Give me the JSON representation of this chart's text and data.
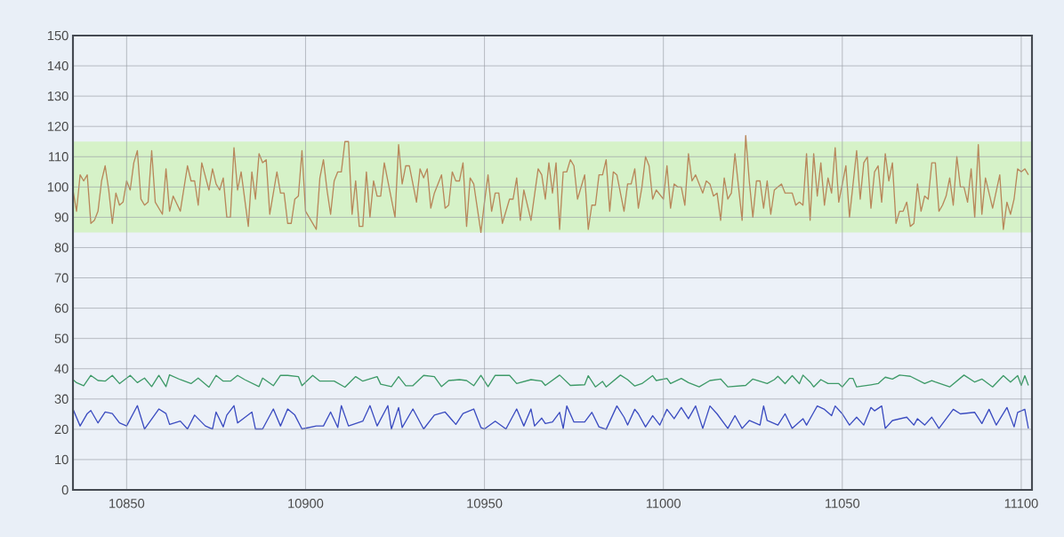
{
  "chart_data": {
    "type": "line",
    "xlim": [
      10835,
      11103
    ],
    "ylim": [
      0,
      150
    ],
    "xticks": [
      10850,
      10900,
      10950,
      11000,
      11050,
      11100
    ],
    "yticks": [
      0,
      10,
      20,
      30,
      40,
      50,
      60,
      70,
      80,
      90,
      100,
      110,
      120,
      130,
      140,
      150
    ],
    "grid": true,
    "marker": "none",
    "line_style": "solid",
    "bands": [
      {
        "axis": "y",
        "from": 85,
        "to": 115,
        "color": "#d6f2c8"
      }
    ],
    "series": [
      {
        "color": "#b8875a",
        "x": [
          10835,
          10836,
          10837,
          10838,
          10839,
          10840,
          10841,
          10842,
          10843,
          10844,
          10845,
          10846,
          10847,
          10848,
          10849,
          10850,
          10851,
          10852,
          10853,
          10854,
          10855,
          10856,
          10857,
          10858,
          10860,
          10861,
          10862,
          10863,
          10865,
          10867,
          10868,
          10869,
          10870,
          10871,
          10873,
          10874,
          10875,
          10876,
          10877,
          10878,
          10879,
          10880,
          10881,
          10882,
          10884,
          10885,
          10886,
          10887,
          10888,
          10889,
          10890,
          10892,
          10893,
          10894,
          10895,
          10896,
          10897,
          10898,
          10899,
          10900,
          10901,
          10903,
          10904,
          10905,
          10906,
          10907,
          10908,
          10909,
          10910,
          10911,
          10912,
          10913,
          10914,
          10915,
          10916,
          10917,
          10918,
          10919,
          10920,
          10921,
          10922,
          10923,
          10925,
          10926,
          10927,
          10928,
          10929,
          10931,
          10932,
          10933,
          10934,
          10935,
          10936,
          10938,
          10939,
          10940,
          10941,
          10942,
          10943,
          10944,
          10945,
          10946,
          10947,
          10949,
          10950,
          10951,
          10952,
          10953,
          10954,
          10955,
          10957,
          10958,
          10959,
          10960,
          10961,
          10963,
          10965,
          10966,
          10967,
          10968,
          10969,
          10970,
          10971,
          10972,
          10973,
          10974,
          10975,
          10976,
          10978,
          10979,
          10980,
          10981,
          10982,
          10983,
          10984,
          10985,
          10986,
          10987,
          10989,
          10990,
          10991,
          10992,
          10993,
          10994,
          10995,
          10996,
          10997,
          10998,
          11000,
          11001,
          11002,
          11003,
          11004,
          11005,
          11006,
          11007,
          11008,
          11009,
          11011,
          11012,
          11013,
          11014,
          11015,
          11016,
          11017,
          11018,
          11019,
          11020,
          11022,
          11023,
          11024,
          11025,
          11026,
          11027,
          11028,
          11029,
          11030,
          11031,
          11032,
          11033,
          11034,
          11036,
          11037,
          11038,
          11039,
          11040,
          11041,
          11042,
          11043,
          11044,
          11045,
          11046,
          11047,
          11048,
          11049,
          11051,
          11052,
          11054,
          11055,
          11056,
          11057,
          11058,
          11059,
          11060,
          11061,
          11062,
          11063,
          11064,
          11065,
          11066,
          11067,
          11068,
          11069,
          11070,
          11071,
          11072,
          11073,
          11074,
          11075,
          11076,
          11077,
          11078,
          11079,
          11080,
          11081,
          11082,
          11083,
          11084,
          11085,
          11086,
          11087,
          11088,
          11089,
          11090,
          11091,
          11092,
          11094,
          11095,
          11096,
          11097,
          11098,
          11099,
          11100,
          11101,
          11102
        ],
        "values": [
          99,
          92,
          104,
          102,
          104,
          88,
          89,
          92,
          102,
          107,
          99,
          88,
          98,
          94,
          95,
          102,
          99,
          108,
          112,
          96,
          94,
          95,
          112,
          95,
          91,
          106,
          92,
          97,
          92,
          107,
          102,
          102,
          94,
          108,
          99,
          106,
          101,
          99,
          103,
          90,
          90,
          113,
          99,
          105,
          87,
          105,
          96,
          111,
          108,
          109,
          91,
          105,
          98,
          98,
          88,
          88,
          96,
          97,
          112,
          92,
          90,
          86,
          103,
          109,
          99,
          91,
          102,
          105,
          105,
          115,
          115,
          91,
          102,
          87,
          87,
          105,
          90,
          102,
          97,
          97,
          108,
          102,
          90,
          114,
          101,
          107,
          107,
          95,
          106,
          103,
          106,
          93,
          98,
          104,
          93,
          94,
          105,
          102,
          102,
          108,
          87,
          103,
          101,
          85,
          95,
          104,
          92,
          98,
          98,
          88,
          96,
          96,
          103,
          89,
          99,
          89,
          106,
          104,
          96,
          108,
          98,
          108,
          86,
          105,
          105,
          109,
          107,
          96,
          104,
          86,
          94,
          94,
          104,
          104,
          109,
          92,
          105,
          104,
          92,
          101,
          101,
          106,
          93,
          100,
          110,
          107,
          96,
          99,
          96,
          107,
          93,
          101,
          100,
          100,
          94,
          111,
          102,
          104,
          98,
          102,
          101,
          97,
          98,
          89,
          103,
          96,
          98,
          111,
          89,
          117,
          102,
          90,
          102,
          102,
          93,
          102,
          91,
          99,
          100,
          101,
          98,
          98,
          94,
          95,
          94,
          111,
          89,
          111,
          97,
          108,
          94,
          103,
          98,
          113,
          95,
          107,
          90,
          112,
          96,
          108,
          110,
          93,
          105,
          107,
          95,
          111,
          102,
          108,
          88,
          92,
          92,
          95,
          87,
          88,
          101,
          92,
          97,
          96,
          108,
          108,
          92,
          94,
          97,
          103,
          94,
          110,
          100,
          100,
          95,
          106,
          90,
          114,
          91,
          103,
          98,
          93,
          104,
          86,
          95,
          91,
          96,
          106,
          105,
          106,
          104
        ]
      },
      {
        "color": "#3e9a68",
        "x": [
          10835,
          10836,
          10838,
          10840,
          10842,
          10844,
          10846,
          10848,
          10851,
          10853,
          10855,
          10857,
          10859,
          10861,
          10862,
          10865,
          10868,
          10870,
          10873,
          10875,
          10877,
          10879,
          10881,
          10883,
          10887,
          10888,
          10891,
          10893,
          10895,
          10898,
          10899,
          10902,
          10904,
          10908,
          10911,
          10914,
          10916,
          10920,
          10921,
          10924,
          10926,
          10928,
          10930,
          10933,
          10936,
          10938,
          10940,
          10943,
          10945,
          10947,
          10949,
          10951,
          10953,
          10957,
          10959,
          10963,
          10966,
          10967,
          10971,
          10974,
          10978,
          10979,
          10981,
          10983,
          10984,
          10988,
          10990,
          10992,
          10994,
          10997,
          10998,
          11001,
          11002,
          11005,
          11007,
          11010,
          11013,
          11016,
          11018,
          11023,
          11025,
          11029,
          11031,
          11032,
          11034,
          11036,
          11038,
          11039,
          11041,
          11042,
          11044,
          11046,
          11049,
          11050,
          11052,
          11053,
          11054,
          11058,
          11060,
          11062,
          11064,
          11066,
          11069,
          11073,
          11075,
          11076,
          11080,
          11084,
          11087,
          11089,
          11092,
          11095,
          11097,
          11099,
          11100,
          11101,
          11102
        ],
        "values": [
          36.4,
          35.4,
          34.4,
          37.8,
          36.1,
          35.9,
          37.8,
          35.1,
          37.8,
          35.4,
          36.9,
          34.1,
          37.8,
          34.1,
          38,
          36.4,
          35.1,
          36.9,
          33.9,
          37.8,
          35.9,
          35.9,
          37.8,
          36.4,
          34.1,
          36.9,
          34.4,
          37.8,
          37.8,
          37.4,
          34.4,
          37.8,
          35.9,
          35.9,
          33.9,
          37.4,
          35.9,
          37.4,
          34.9,
          34.1,
          37.4,
          34.4,
          34.4,
          37.8,
          37.4,
          34.1,
          36.1,
          36.4,
          36.1,
          34.4,
          37.8,
          34.1,
          37.8,
          37.8,
          35.1,
          36.4,
          35.9,
          34.5,
          37.9,
          34.5,
          34.7,
          37.7,
          34,
          35.8,
          34,
          37.9,
          36.4,
          34.3,
          35.1,
          37.7,
          36.1,
          36.8,
          35.1,
          36.8,
          35.4,
          34,
          36.1,
          36.6,
          34,
          34.5,
          36.6,
          35.1,
          36.4,
          37.5,
          35.1,
          37.7,
          35.1,
          37.9,
          35.6,
          34,
          36.4,
          35.1,
          35.1,
          34,
          36.8,
          36.8,
          34,
          34.7,
          35.1,
          37.2,
          36.6,
          37.9,
          37.5,
          35.1,
          36.1,
          35.6,
          34,
          37.9,
          35.6,
          36.6,
          34,
          37.7,
          35.6,
          37.7,
          34.5,
          37.7,
          34.5
        ]
      },
      {
        "color": "#3b4cc0",
        "x": [
          10835,
          10837,
          10839,
          10840,
          10842,
          10844,
          10846,
          10848,
          10850,
          10853,
          10855,
          10859,
          10861,
          10862,
          10865,
          10867,
          10869,
          10872,
          10874,
          10875,
          10877,
          10878,
          10880,
          10881,
          10885,
          10886,
          10888,
          10891,
          10893,
          10895,
          10897,
          10899,
          10903,
          10905,
          10907,
          10909,
          10910,
          10912,
          10916,
          10918,
          10920,
          10923,
          10924,
          10926,
          10927,
          10930,
          10933,
          10936,
          10939,
          10942,
          10944,
          10947,
          10949,
          10950,
          10953,
          10956,
          10959,
          10961,
          10963,
          10964,
          10966,
          10967,
          10969,
          10971,
          10972,
          10973,
          10975,
          10978,
          10980,
          10982,
          10984,
          10987,
          10989,
          10990,
          10992,
          10993,
          10995,
          10997,
          10999,
          11001,
          11003,
          11005,
          11007,
          11009,
          11011,
          11013,
          11015,
          11018,
          11020,
          11022,
          11024,
          11027,
          11028,
          11029,
          11032,
          11034,
          11036,
          11039,
          11040,
          11042,
          11043,
          11045,
          11047,
          11048,
          11050,
          11052,
          11054,
          11056,
          11058,
          11059,
          11061,
          11062,
          11064,
          11068,
          11070,
          11071,
          11073,
          11075,
          11077,
          11081,
          11083,
          11087,
          11089,
          11091,
          11093,
          11096,
          11098,
          11099,
          11101,
          11102
        ],
        "values": [
          26.7,
          21.1,
          25.2,
          26.2,
          22.1,
          25.7,
          25.2,
          22.1,
          21.1,
          27.8,
          20.1,
          26.7,
          25.2,
          21.6,
          22.7,
          20.1,
          24.7,
          21.1,
          20.1,
          25.7,
          20.8,
          24.7,
          27.8,
          22.1,
          25.7,
          20.1,
          20.1,
          26.7,
          21.1,
          26.7,
          24.7,
          20.1,
          21.1,
          21.1,
          25.7,
          20.6,
          27.8,
          21.1,
          22.7,
          27.8,
          21.1,
          27.8,
          20.1,
          27.2,
          20.6,
          26.7,
          20.1,
          24.7,
          25.7,
          21.6,
          25.2,
          26.7,
          20.6,
          20.1,
          22.7,
          20.1,
          26.7,
          21.1,
          26.7,
          21.1,
          23.7,
          21.9,
          22.4,
          25.6,
          20.3,
          27.7,
          22.4,
          22.4,
          25.6,
          20.8,
          20,
          27.7,
          24,
          21.4,
          26.6,
          25.1,
          20.8,
          24.5,
          21.4,
          26.6,
          23.5,
          27.2,
          23.5,
          27.7,
          20.3,
          27.7,
          25.1,
          20.3,
          24.5,
          20.3,
          22.9,
          21.4,
          27.7,
          22.9,
          21.4,
          25.1,
          20.3,
          23.5,
          21.4,
          25.6,
          27.7,
          26.6,
          24.5,
          27.7,
          25.1,
          21.4,
          24,
          21.4,
          27.2,
          26.1,
          27.7,
          20.3,
          22.9,
          24,
          21.4,
          23.5,
          21.4,
          24,
          20.3,
          26.6,
          25.1,
          25.6,
          21.9,
          26.6,
          21.4,
          27.2,
          20.8,
          25.6,
          26.6,
          20.3
        ]
      }
    ]
  }
}
